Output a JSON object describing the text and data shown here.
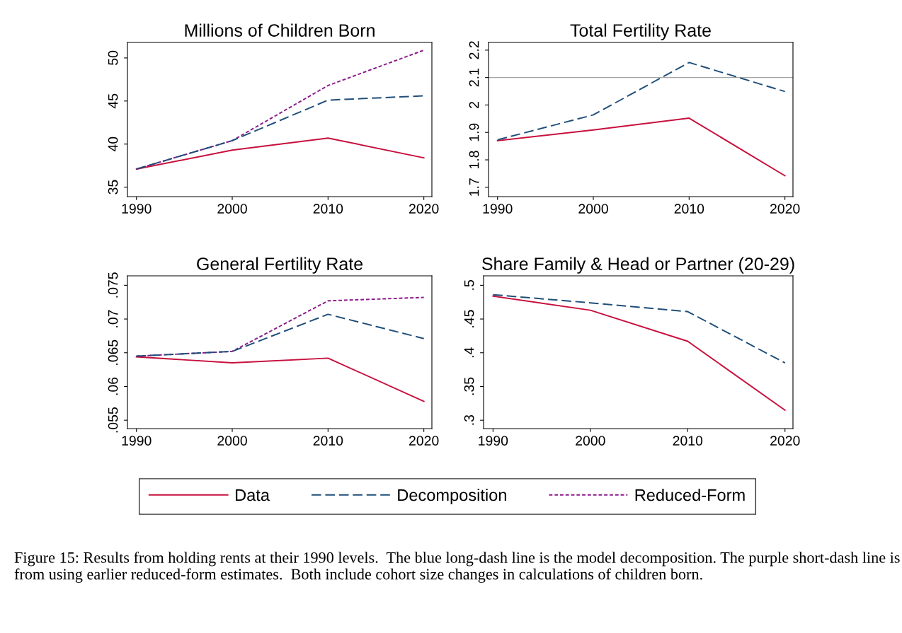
{
  "chart_data": [
    {
      "type": "line",
      "title": "Millions of Children Born",
      "x": [
        1990,
        2000,
        2010,
        2020
      ],
      "xlim": [
        1989.06,
        2020.84
      ],
      "xticks": [
        1990,
        2000,
        2010,
        2020
      ],
      "ylim": [
        33.9,
        51.8
      ],
      "yticks": [
        35,
        40,
        45,
        50
      ],
      "grid": false,
      "legend": "bottom",
      "series": [
        {
          "name": "Data",
          "color": "#c8103e",
          "line_style": "solid",
          "values": [
            37.1,
            39.3,
            40.7,
            38.4
          ]
        },
        {
          "name": "Decomposition",
          "color": "#1f4e79",
          "line_style": "longdash",
          "values": [
            37.1,
            40.4,
            45.1,
            45.6
          ]
        },
        {
          "name": "Reduced-Form",
          "color": "#8b1a8b",
          "line_style": "dashed",
          "values": [
            37.1,
            40.4,
            46.8,
            50.9
          ]
        }
      ],
      "annotations": [
        "Figure 15: Results from holding rents at their 1990 levels.  The blue long-dash line is the model decomposition. The purple short-dash line is from using earlier reduced-form estimates.  Both include cohort size changes in calculations of children born."
      ]
    },
    {
      "type": "line",
      "title": "Total Fertility Rate",
      "x": [
        1990,
        2000,
        2010,
        2020
      ],
      "xlim": [
        1989.06,
        2020.84
      ],
      "xticks": [
        1990,
        2000,
        2010,
        2020
      ],
      "ylim": [
        1.666,
        2.228
      ],
      "yticks": [
        {
          "value": 1.7,
          "label": "1.7"
        },
        {
          "value": 1.8,
          "label": "1.8"
        },
        {
          "value": 1.9,
          "label": "1.9"
        },
        {
          "value": 2,
          "label": "2"
        },
        {
          "value": 2.1,
          "label": "2.1"
        },
        {
          "value": 2.2,
          "label": "2.2"
        }
      ],
      "grid": false,
      "ref_lines": [
        {
          "axis": "y",
          "value": 2.1,
          "color": "#a6a6a6"
        }
      ],
      "series": [
        {
          "color": "#c8103e",
          "line_style": "solid",
          "values": [
            1.87,
            1.909,
            1.952,
            1.742
          ]
        },
        {
          "color": "#1f4e79",
          "line_style": "longdash",
          "values": [
            1.873,
            1.964,
            2.155,
            2.049
          ]
        }
      ]
    },
    {
      "type": "line",
      "title": "General Fertility Rate",
      "x": [
        1990,
        2000,
        2010,
        2020
      ],
      "xlim": [
        1989.06,
        2020.84
      ],
      "xticks": [
        1990,
        2000,
        2010,
        2020
      ],
      "ylim": [
        0.05376,
        0.0764
      ],
      "yticks": [
        {
          "value": 0.055,
          "label": ".055"
        },
        {
          "value": 0.06,
          "label": ".06"
        },
        {
          "value": 0.065,
          "label": ".065"
        },
        {
          "value": 0.07,
          "label": ".07"
        },
        {
          "value": 0.075,
          "label": ".075"
        }
      ],
      "grid": false,
      "series": [
        {
          "color": "#c8103e",
          "line_style": "solid",
          "values": [
            0.0644,
            0.0635,
            0.0642,
            0.0578
          ]
        },
        {
          "color": "#1f4e79",
          "line_style": "longdash",
          "values": [
            0.0645,
            0.0652,
            0.0707,
            0.0671
          ]
        },
        {
          "color": "#8b1a8b",
          "line_style": "dashed",
          "values": [
            0.0645,
            0.0652,
            0.0727,
            0.0732
          ]
        }
      ]
    },
    {
      "type": "line",
      "title": "Share Family & Head or Partner (20-29)",
      "x": [
        1990,
        2000,
        2010,
        2020
      ],
      "xlim": [
        1989.03,
        2020.82
      ],
      "xticks": [
        1990,
        2000,
        2010,
        2020
      ],
      "ylim": [
        0.2876,
        0.514
      ],
      "yticks": [
        {
          "value": 0.3,
          "label": ".3"
        },
        {
          "value": 0.35,
          "label": ".35"
        },
        {
          "value": 0.4,
          "label": ".4"
        },
        {
          "value": 0.45,
          "label": ".45"
        },
        {
          "value": 0.5,
          "label": ".5"
        }
      ],
      "grid": false,
      "series": [
        {
          "color": "#c8103e",
          "line_style": "solid",
          "values": [
            0.484,
            0.463,
            0.417,
            0.315
          ]
        },
        {
          "color": "#1f4e79",
          "line_style": "longdash",
          "values": [
            0.486,
            0.474,
            0.461,
            0.385
          ]
        }
      ]
    }
  ]
}
